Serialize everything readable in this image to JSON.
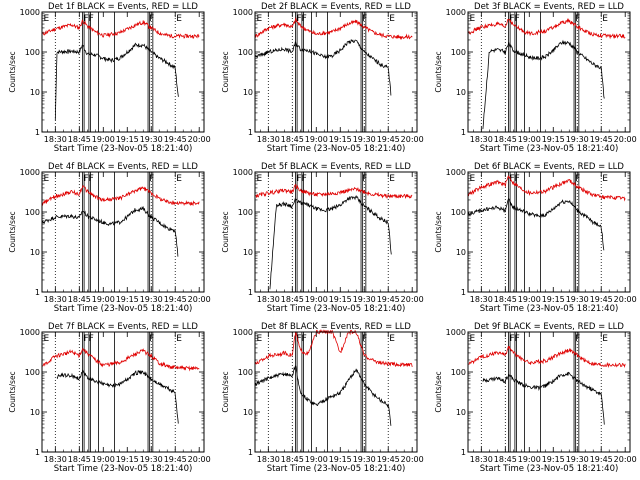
{
  "chart_data": {
    "type": "line",
    "yscale": "log",
    "ylabel": "Counts/sec",
    "ylim": [
      1,
      1000
    ],
    "y_ticks": [
      "1",
      "10",
      "100",
      "1000"
    ],
    "x_ticks": [
      "18:30",
      "18:45",
      "19:00",
      "19:15",
      "19:30",
      "19:45",
      "20:00"
    ],
    "xlabel": "Start Time (23-Nov-05 18:21:40)",
    "series_colors": {
      "events": "#000000",
      "lld": "#e00000"
    },
    "panels": [
      {
        "title": "Det 1f BLACK = Events, RED = LLD",
        "events": {
          "x": [
            "18:30",
            "18:31",
            "18:40",
            "18:45",
            "18:47",
            "18:50",
            "18:55",
            "19:00",
            "19:05",
            "19:10",
            "19:15",
            "19:20",
            "19:25",
            "19:30",
            "19:35",
            "19:40",
            "19:45",
            "19:47"
          ],
          "y": [
            2,
            100,
            105,
            100,
            150,
            90,
            85,
            70,
            62,
            70,
            100,
            150,
            150,
            100,
            70,
            55,
            40,
            7
          ]
        },
        "lld": {
          "x": [
            "18:22",
            "18:30",
            "18:40",
            "18:45",
            "18:47",
            "18:50",
            "18:55",
            "19:00",
            "19:10",
            "19:20",
            "19:25",
            "19:30",
            "19:35",
            "19:40",
            "19:45",
            "19:50",
            "20:00"
          ],
          "y": [
            280,
            380,
            480,
            400,
            600,
            450,
            320,
            260,
            300,
            470,
            560,
            400,
            300,
            260,
            250,
            250,
            250
          ]
        }
      },
      {
        "title": "Det 2f BLACK = Events, RED = LLD",
        "events": {
          "x": [
            "18:22",
            "18:30",
            "18:40",
            "18:45",
            "18:47",
            "18:50",
            "18:55",
            "19:00",
            "19:05",
            "19:10",
            "19:15",
            "19:20",
            "19:25",
            "19:30",
            "19:35",
            "19:40",
            "19:45",
            "19:47"
          ],
          "y": [
            75,
            100,
            120,
            100,
            170,
            120,
            110,
            90,
            75,
            80,
            110,
            180,
            190,
            100,
            70,
            50,
            40,
            7
          ]
        },
        "lld": {
          "x": [
            "18:22",
            "18:30",
            "18:40",
            "18:45",
            "18:47",
            "18:50",
            "18:55",
            "19:00",
            "19:10",
            "19:20",
            "19:25",
            "19:30",
            "19:35",
            "19:40",
            "19:45",
            "19:50",
            "20:00"
          ],
          "y": [
            250,
            400,
            500,
            420,
            650,
            450,
            340,
            280,
            320,
            500,
            580,
            420,
            320,
            270,
            250,
            240,
            240
          ]
        }
      },
      {
        "title": "Det 3f BLACK = Events, RED = LLD",
        "events": {
          "x": [
            "18:31",
            "18:35",
            "18:40",
            "18:45",
            "18:47",
            "18:50",
            "18:55",
            "19:00",
            "19:05",
            "19:10",
            "19:15",
            "19:20",
            "19:25",
            "19:30",
            "19:35",
            "19:40",
            "19:45",
            "19:47"
          ],
          "y": [
            1.2,
            105,
            115,
            100,
            160,
            110,
            90,
            75,
            70,
            75,
            110,
            170,
            170,
            100,
            70,
            50,
            40,
            6
          ]
        },
        "lld": {
          "x": [
            "18:22",
            "18:30",
            "18:40",
            "18:45",
            "18:47",
            "18:50",
            "18:55",
            "19:00",
            "19:10",
            "19:20",
            "19:25",
            "19:30",
            "19:35",
            "19:40",
            "19:45",
            "19:50",
            "20:00"
          ],
          "y": [
            300,
            420,
            500,
            420,
            700,
            480,
            350,
            290,
            330,
            520,
            600,
            430,
            330,
            280,
            260,
            250,
            250
          ]
        }
      },
      {
        "title": "Det 4f BLACK = Events, RED = LLD",
        "events": {
          "x": [
            "18:22",
            "18:30",
            "18:40",
            "18:45",
            "18:47",
            "18:50",
            "18:55",
            "19:00",
            "19:05",
            "19:10",
            "19:15",
            "19:20",
            "19:25",
            "19:30",
            "19:35",
            "19:40",
            "19:45",
            "19:47"
          ],
          "y": [
            55,
            75,
            80,
            70,
            110,
            80,
            65,
            55,
            50,
            55,
            75,
            115,
            120,
            75,
            55,
            40,
            35,
            6
          ]
        },
        "lld": {
          "x": [
            "18:22",
            "18:30",
            "18:40",
            "18:45",
            "18:47",
            "18:50",
            "18:55",
            "19:00",
            "19:10",
            "19:20",
            "19:25",
            "19:30",
            "19:35",
            "19:40",
            "19:45",
            "19:50",
            "20:00"
          ],
          "y": [
            160,
            250,
            320,
            280,
            450,
            330,
            240,
            200,
            220,
            340,
            400,
            300,
            220,
            180,
            170,
            165,
            165
          ]
        }
      },
      {
        "title": "Det 5f BLACK = Events, RED = LLD",
        "events": {
          "x": [
            "18:31",
            "18:35",
            "18:40",
            "18:45",
            "18:47",
            "18:50",
            "18:55",
            "19:00",
            "19:05",
            "19:10",
            "19:15",
            "19:20",
            "19:25",
            "19:30",
            "19:35",
            "19:40",
            "19:45",
            "19:47"
          ],
          "y": [
            1.2,
            150,
            160,
            140,
            200,
            170,
            150,
            120,
            110,
            120,
            150,
            220,
            230,
            140,
            100,
            70,
            55,
            8
          ]
        },
        "lld": {
          "x": [
            "18:22",
            "18:30",
            "18:40",
            "18:45",
            "18:47",
            "18:50",
            "18:55",
            "19:00",
            "19:10",
            "19:20",
            "19:25",
            "19:30",
            "19:35",
            "19:40",
            "19:45",
            "19:50",
            "20:00"
          ],
          "y": [
            250,
            300,
            350,
            320,
            450,
            350,
            300,
            270,
            290,
            340,
            380,
            320,
            280,
            260,
            250,
            250,
            250
          ]
        }
      },
      {
        "title": "Det 6f BLACK = Events, RED = LLD",
        "events": {
          "x": [
            "18:22",
            "18:30",
            "18:40",
            "18:45",
            "18:47",
            "18:50",
            "18:55",
            "19:00",
            "19:05",
            "19:10",
            "19:15",
            "19:20",
            "19:25",
            "19:30",
            "19:35",
            "19:40",
            "19:45",
            "19:47"
          ],
          "y": [
            90,
            110,
            130,
            110,
            200,
            130,
            110,
            90,
            80,
            85,
            120,
            180,
            190,
            110,
            80,
            55,
            45,
            8
          ]
        },
        "lld": {
          "x": [
            "18:22",
            "18:30",
            "18:40",
            "18:45",
            "18:47",
            "18:50",
            "18:55",
            "19:00",
            "19:10",
            "19:20",
            "19:25",
            "19:30",
            "19:35",
            "19:40",
            "19:45",
            "19:50",
            "20:00"
          ],
          "y": [
            280,
            420,
            560,
            480,
            800,
            540,
            380,
            300,
            330,
            520,
            620,
            440,
            330,
            270,
            240,
            230,
            220
          ]
        }
      },
      {
        "title": "Det 7f BLACK = Events, RED = LLD",
        "events": {
          "x": [
            "18:31",
            "18:35",
            "18:40",
            "18:45",
            "18:47",
            "18:50",
            "18:55",
            "19:00",
            "19:05",
            "19:10",
            "19:15",
            "19:20",
            "19:25",
            "19:30",
            "19:35",
            "19:40",
            "19:45",
            "19:47"
          ],
          "y": [
            75,
            85,
            80,
            70,
            100,
            75,
            60,
            50,
            45,
            50,
            65,
            95,
            100,
            65,
            50,
            40,
            30,
            5
          ]
        },
        "lld": {
          "x": [
            "18:22",
            "18:30",
            "18:40",
            "18:45",
            "18:47",
            "18:50",
            "18:55",
            "19:00",
            "19:10",
            "19:20",
            "19:25",
            "19:30",
            "19:35",
            "19:40",
            "19:45",
            "19:50",
            "20:00"
          ],
          "y": [
            140,
            250,
            320,
            260,
            380,
            300,
            200,
            150,
            170,
            280,
            340,
            250,
            170,
            140,
            130,
            125,
            125
          ]
        }
      },
      {
        "title": "Det 8f BLACK = Events, RED = LLD",
        "events": {
          "x": [
            "18:22",
            "18:30",
            "18:40",
            "18:45",
            "18:47",
            "18:50",
            "18:55",
            "19:00",
            "19:05",
            "19:10",
            "19:15",
            "19:20",
            "19:25",
            "19:30",
            "19:35",
            "19:40",
            "19:45",
            "19:47"
          ],
          "y": [
            50,
            70,
            90,
            80,
            150,
            30,
            20,
            15,
            20,
            25,
            30,
            60,
            120,
            50,
            30,
            20,
            15,
            4
          ]
        },
        "lld": {
          "x": [
            "18:22",
            "18:30",
            "18:40",
            "18:45",
            "18:47",
            "18:50",
            "18:55",
            "19:00",
            "19:05",
            "19:10",
            "19:15",
            "19:20",
            "19:25",
            "19:30",
            "19:35",
            "19:40",
            "19:45",
            "19:50",
            "20:00"
          ],
          "y": [
            160,
            250,
            300,
            260,
            1000,
            350,
            280,
            1000,
            1000,
            1000,
            300,
            1000,
            1000,
            260,
            200,
            170,
            160,
            155,
            150
          ]
        }
      },
      {
        "title": "Det 9f BLACK = Events, RED = LLD",
        "events": {
          "x": [
            "18:31",
            "18:35",
            "18:40",
            "18:45",
            "18:47",
            "18:50",
            "18:55",
            "19:00",
            "19:05",
            "19:10",
            "19:15",
            "19:20",
            "19:25",
            "19:30",
            "19:35",
            "19:40",
            "19:45",
            "19:47"
          ],
          "y": [
            60,
            65,
            70,
            60,
            90,
            65,
            50,
            42,
            40,
            45,
            60,
            85,
            90,
            60,
            45,
            35,
            28,
            5
          ]
        },
        "lld": {
          "x": [
            "18:22",
            "18:30",
            "18:40",
            "18:45",
            "18:47",
            "18:50",
            "18:55",
            "19:00",
            "19:10",
            "19:20",
            "19:25",
            "19:30",
            "19:35",
            "19:40",
            "19:45",
            "19:50",
            "20:00"
          ],
          "y": [
            160,
            240,
            310,
            270,
            420,
            310,
            220,
            170,
            190,
            300,
            360,
            260,
            190,
            160,
            150,
            150,
            150
          ]
        }
      }
    ],
    "interval_lines": {
      "dotted": [
        "18:30",
        "18:45",
        "19:30",
        "19:45"
      ],
      "solid": [
        "18:47",
        "18:48",
        "18:51",
        "18:52",
        "18:57",
        "19:07",
        "19:28",
        "19:29",
        "19:31"
      ]
    },
    "interval_labels": [
      {
        "text": "E",
        "x": "18:22"
      },
      {
        "text": "FF",
        "x": "18:47"
      },
      {
        "text": "F",
        "x": "19:28"
      },
      {
        "text": "E",
        "x": "19:45"
      }
    ]
  }
}
